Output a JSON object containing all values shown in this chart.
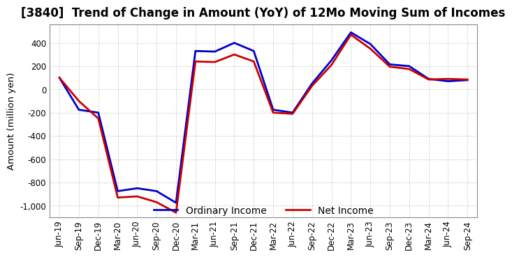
{
  "title": "[3840]  Trend of Change in Amount (YoY) of 12Mo Moving Sum of Incomes",
  "ylabel": "Amount (million yen)",
  "x_labels": [
    "Jun-19",
    "Sep-19",
    "Dec-19",
    "Mar-20",
    "Jun-20",
    "Sep-20",
    "Dec-20",
    "Mar-21",
    "Jun-21",
    "Sep-21",
    "Dec-21",
    "Mar-22",
    "Jun-22",
    "Sep-22",
    "Dec-22",
    "Mar-23",
    "Jun-23",
    "Sep-23",
    "Dec-23",
    "Mar-24",
    "Jun-24",
    "Sep-24"
  ],
  "ordinary_income": [
    100,
    -175,
    -200,
    -875,
    -850,
    -875,
    -975,
    330,
    325,
    400,
    330,
    -175,
    -200,
    50,
    250,
    490,
    390,
    215,
    200,
    90,
    70,
    80
  ],
  "net_income": [
    100,
    -100,
    -250,
    -930,
    -920,
    -970,
    -1060,
    240,
    235,
    300,
    240,
    -200,
    -210,
    30,
    210,
    470,
    350,
    195,
    175,
    85,
    90,
    85
  ],
  "ordinary_color": "#0000cc",
  "net_color": "#cc0000",
  "ylim": [
    -1100,
    560
  ],
  "yticks": [
    -1000,
    -800,
    -600,
    -400,
    -200,
    0,
    200,
    400
  ],
  "grid_color": "#aaaaaa",
  "bg_color": "#ffffff",
  "title_fontsize": 12,
  "axis_fontsize": 8.5,
  "legend_fontsize": 10
}
